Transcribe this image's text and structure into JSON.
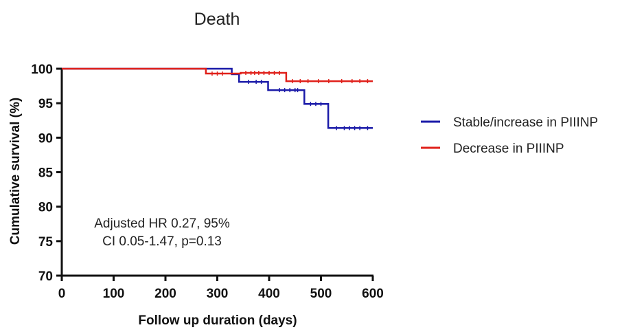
{
  "chart_data": {
    "type": "line",
    "title": "Death",
    "xlabel": "Follow up duration (days)",
    "ylabel": "Cumulative survival (%)",
    "xlim": [
      0,
      600
    ],
    "ylim": [
      70,
      100
    ],
    "xticks": [
      "0",
      "100",
      "200",
      "300",
      "400",
      "500",
      "600"
    ],
    "yticks": [
      "70",
      "75",
      "80",
      "85",
      "90",
      "95",
      "100"
    ],
    "grid": false,
    "legend_position": "right",
    "series": [
      {
        "name": "Stable/increase in PIIINP",
        "color": "#1a1aa8",
        "step_points": [
          [
            0,
            100
          ],
          [
            328,
            100
          ],
          [
            328,
            99.2
          ],
          [
            342,
            99.2
          ],
          [
            342,
            98.1
          ],
          [
            398,
            98.1
          ],
          [
            398,
            96.9
          ],
          [
            468,
            96.9
          ],
          [
            468,
            94.9
          ],
          [
            514,
            94.9
          ],
          [
            514,
            91.4
          ],
          [
            600,
            91.4
          ]
        ],
        "censor_x": [
          360,
          375,
          385,
          420,
          430,
          440,
          450,
          455,
          480,
          490,
          500,
          530,
          545,
          555,
          565,
          575,
          590
        ]
      },
      {
        "name": "Decrease in PIIINP",
        "color": "#e0201a",
        "step_points": [
          [
            0,
            100
          ],
          [
            278,
            100
          ],
          [
            278,
            99.3
          ],
          [
            345,
            99.3
          ],
          [
            345,
            99.4
          ],
          [
            433,
            99.4
          ],
          [
            433,
            98.2
          ],
          [
            600,
            98.2
          ]
        ],
        "censor_x": [
          290,
          300,
          310,
          355,
          365,
          372,
          380,
          390,
          400,
          410,
          420,
          445,
          460,
          475,
          495,
          515,
          540,
          560,
          575,
          590
        ]
      }
    ],
    "annotation": [
      "Adjusted HR 0.27, 95%",
      "CI 0.05-1.47, p=0.13"
    ]
  }
}
